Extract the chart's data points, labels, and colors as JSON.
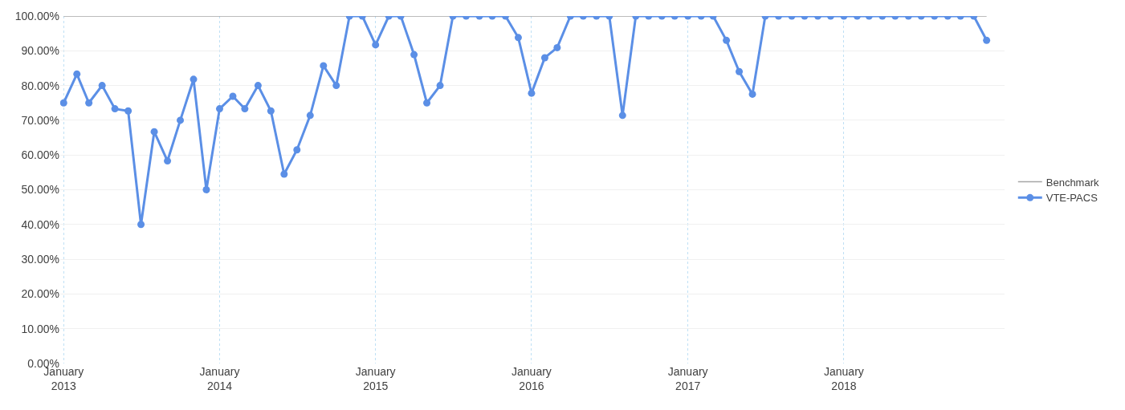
{
  "chart_data": {
    "type": "line",
    "x": [
      "2013-01",
      "2013-02",
      "2013-03",
      "2013-04",
      "2013-05",
      "2013-06",
      "2013-07",
      "2013-08",
      "2013-09",
      "2013-10",
      "2013-11",
      "2013-12",
      "2014-01",
      "2014-02",
      "2014-03",
      "2014-04",
      "2014-05",
      "2014-06",
      "2014-07",
      "2014-08",
      "2014-09",
      "2014-10",
      "2014-11",
      "2014-12",
      "2015-01",
      "2015-02",
      "2015-03",
      "2015-04",
      "2015-05",
      "2015-06",
      "2015-07",
      "2015-08",
      "2015-09",
      "2015-10",
      "2015-11",
      "2015-12",
      "2016-01",
      "2016-02",
      "2016-03",
      "2016-04",
      "2016-05",
      "2016-06",
      "2016-07",
      "2016-08",
      "2016-09",
      "2016-10",
      "2016-11",
      "2016-12",
      "2017-01",
      "2017-02",
      "2017-03",
      "2017-04",
      "2017-05",
      "2017-06",
      "2017-07",
      "2017-08",
      "2017-09",
      "2017-10",
      "2017-11",
      "2017-12",
      "2018-01",
      "2018-02",
      "2018-03",
      "2018-04",
      "2018-05",
      "2018-06",
      "2018-07",
      "2018-08",
      "2018-09",
      "2018-10",
      "2018-11",
      "2018-12"
    ],
    "series": [
      {
        "name": "Benchmark",
        "color": "#a6a6a6",
        "marker": "none",
        "x": [
          "2013-01",
          "2018-12"
        ],
        "values": [
          100,
          100
        ]
      },
      {
        "name": "VTE-PACS",
        "color": "#5b8fe6",
        "marker": "circle",
        "values": [
          75,
          83.3,
          75,
          80,
          73.3,
          72.7,
          40,
          66.7,
          58.3,
          70,
          81.8,
          50,
          73.3,
          76.9,
          73.3,
          80,
          72.7,
          54.5,
          61.5,
          71.4,
          85.7,
          80,
          100,
          100,
          91.7,
          100,
          100,
          88.9,
          75,
          80,
          100,
          100,
          100,
          100,
          100,
          93.8,
          77.8,
          88,
          90.9,
          100,
          100,
          100,
          100,
          71.4,
          100,
          100,
          100,
          100,
          100,
          100,
          100,
          93,
          84,
          77.5,
          100,
          100,
          100,
          100,
          100,
          100,
          100,
          100,
          100,
          100,
          100,
          100,
          100,
          100,
          100,
          100,
          100,
          93
        ]
      }
    ],
    "xlim": [
      "2012-12-24",
      "2019-01-12"
    ],
    "xticks": [
      {
        "value": "2013-01",
        "label": "January\n2013"
      },
      {
        "value": "2014-01",
        "label": "January\n2014"
      },
      {
        "value": "2015-01",
        "label": "January\n2015"
      },
      {
        "value": "2016-01",
        "label": "January\n2016"
      },
      {
        "value": "2017-01",
        "label": "January\n2017"
      },
      {
        "value": "2018-01",
        "label": "January\n2018"
      }
    ],
    "ylim": [
      0,
      100
    ],
    "yticks": [
      {
        "value": 0,
        "label": "0.00%"
      },
      {
        "value": 10,
        "label": "10.00%"
      },
      {
        "value": 20,
        "label": "20.00%"
      },
      {
        "value": 30,
        "label": "30.00%"
      },
      {
        "value": 40,
        "label": "40.00%"
      },
      {
        "value": 50,
        "label": "50.00%"
      },
      {
        "value": 60,
        "label": "60.00%"
      },
      {
        "value": 70,
        "label": "70.00%"
      },
      {
        "value": 80,
        "label": "80.00%"
      },
      {
        "value": 90,
        "label": "90.00%"
      },
      {
        "value": 100,
        "label": "100.00%"
      }
    ],
    "grid": true,
    "legend": "right",
    "line_style": "solid"
  }
}
